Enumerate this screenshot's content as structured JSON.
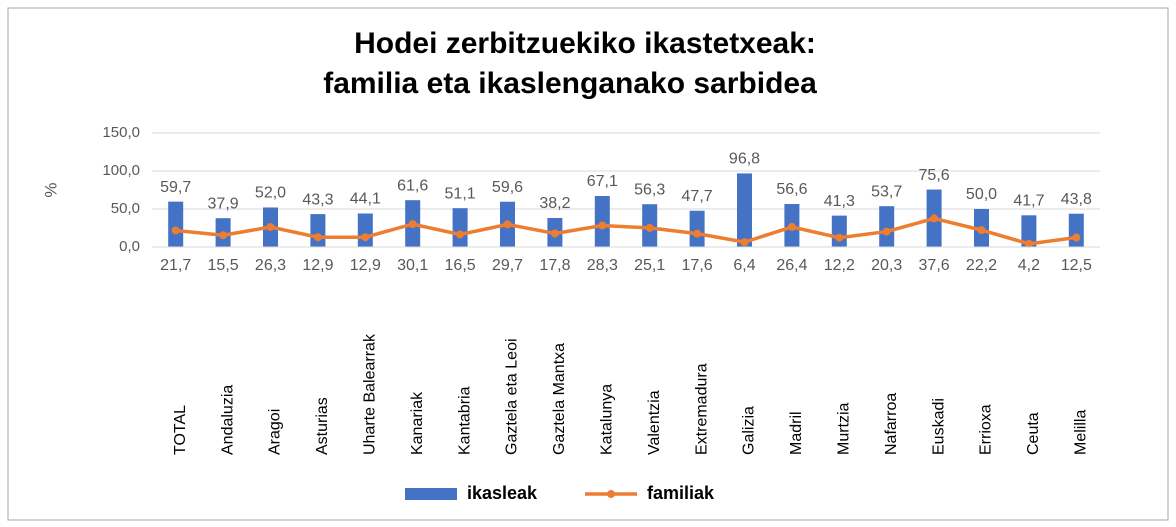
{
  "chart_data": {
    "type": "bar-line",
    "title": [
      "Hodei zerbitzuekiko ikastetxeak:",
      "familia eta ikaslenganako sarbidea"
    ],
    "y_label": "%",
    "categories": [
      "TOTAL",
      "Andaluzia",
      "Aragoi",
      "Asturias",
      "Uharte Balearrak",
      "Kanariak",
      "Kantabria",
      "Gaztela eta Leoi",
      "Gaztela Mantxa",
      "Katalunya",
      "Valentzia",
      "Extremadura",
      "Galizia",
      "Madril",
      "Murtzia",
      "Nafarroa",
      "Euskadi",
      "Errioxa",
      "Ceuta",
      "Melilla"
    ],
    "series": [
      {
        "name": "ikasleak",
        "type": "bar",
        "color": "#4472c4",
        "values": [
          59.7,
          37.9,
          52.0,
          43.3,
          44.1,
          61.6,
          51.1,
          59.6,
          38.2,
          67.1,
          56.3,
          47.7,
          96.8,
          56.6,
          41.3,
          53.7,
          75.6,
          50.0,
          41.7,
          43.8
        ],
        "value_labels": [
          "59,7",
          "37,9",
          "52,0",
          "43,3",
          "44,1",
          "61,6",
          "51,1",
          "59,6",
          "38,2",
          "67,1",
          "56,3",
          "47,7",
          "96,8",
          "56,6",
          "41,3",
          "53,7",
          "75,6",
          "50,0",
          "41,7",
          "43,8"
        ]
      },
      {
        "name": "familiak",
        "type": "line",
        "color": "#ed7d31",
        "values": [
          21.7,
          15.5,
          26.3,
          12.9,
          12.9,
          30.1,
          16.5,
          29.7,
          17.8,
          28.3,
          25.1,
          17.6,
          6.4,
          26.4,
          12.2,
          20.3,
          37.6,
          22.2,
          4.2,
          12.5
        ],
        "value_labels": [
          "21,7",
          "15,5",
          "26,3",
          "12,9",
          "12,9",
          "30,1",
          "16,5",
          "29,7",
          "17,8",
          "28,3",
          "25,1",
          "17,6",
          "6,4",
          "26,4",
          "12,2",
          "20,3",
          "37,6",
          "22,2",
          "4,2",
          "12,5"
        ]
      }
    ],
    "ylim": [
      0,
      150
    ],
    "yticks": [
      {
        "value": 0,
        "label": "0,0"
      },
      {
        "value": 50,
        "label": "50,0"
      },
      {
        "value": 100,
        "label": "100,0"
      },
      {
        "value": 150,
        "label": "150,0"
      }
    ],
    "grid": true,
    "legend": "bottom"
  }
}
